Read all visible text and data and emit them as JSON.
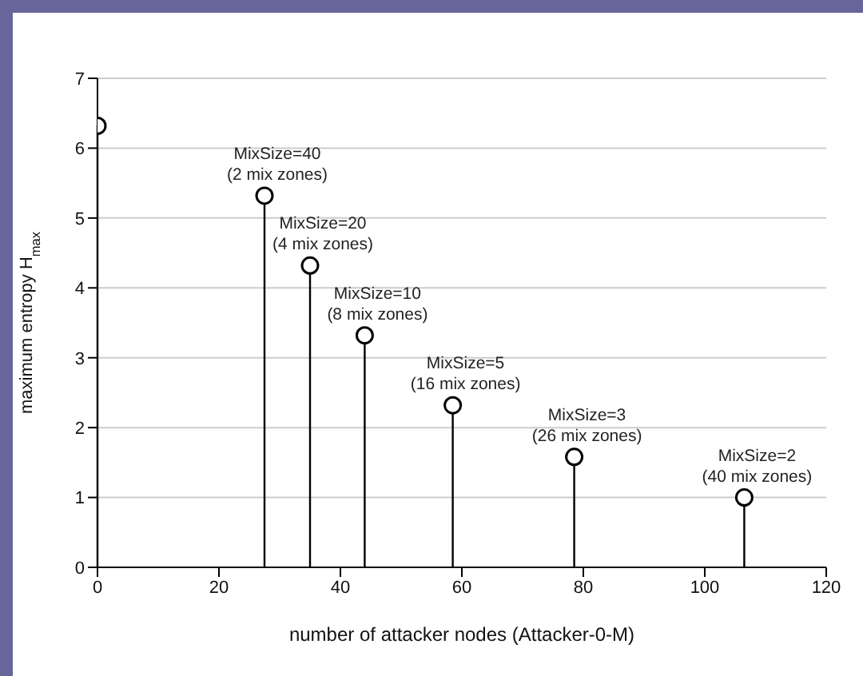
{
  "chart_data": {
    "type": "lollipop",
    "xlabel": "number of attacker nodes (Attacker-0-M)",
    "ylabel": "maximum entropy H$_{max}$",
    "x": [
      0,
      27.5,
      35,
      44,
      58.5,
      78.5,
      106.5
    ],
    "values": [
      6.32,
      5.32,
      4.32,
      3.32,
      2.32,
      1.58,
      1.0
    ],
    "color": "#000000",
    "marker": "circle",
    "grid": "y",
    "xlim": [
      0,
      120
    ],
    "xticks": [
      0,
      20,
      40,
      60,
      80,
      100,
      120
    ],
    "ylim": [
      0,
      7
    ],
    "yticks": [
      0,
      1,
      2,
      3,
      4,
      5,
      6,
      7
    ],
    "annotations": [
      {
        "text": "MixSize=40\n(2 mix zones)",
        "x": 27.5,
        "y": 5.32
      },
      {
        "text": "MixSize=20\n(4 mix zones)",
        "x": 35,
        "y": 4.32
      },
      {
        "text": "MixSize=10\n(8 mix zones)",
        "x": 44,
        "y": 3.32
      },
      {
        "text": "MixSize=5\n(16 mix zones)",
        "x": 58.5,
        "y": 2.32
      },
      {
        "text": "MixSize=3\n(26 mix zones)",
        "x": 78.5,
        "y": 1.58
      },
      {
        "text": "MixSize=2\n(40 mix zones)",
        "x": 106.5,
        "y": 1.0
      }
    ]
  }
}
